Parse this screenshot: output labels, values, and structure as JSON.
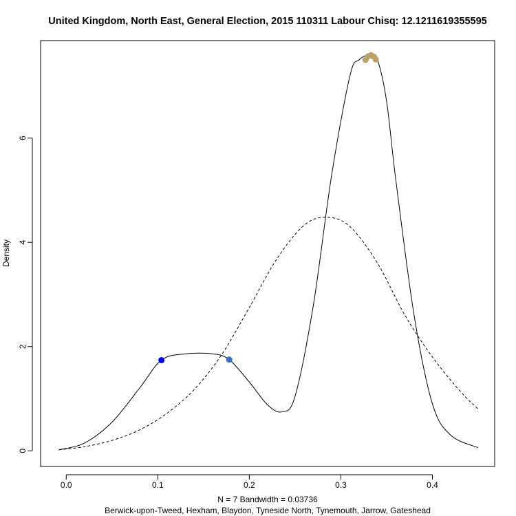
{
  "chart_data": {
    "type": "line",
    "title": "United Kingdom, North East, General Election, 2015 110311 Labour Chisq: 12.1211619355595",
    "xlabel": "N = 7   Bandwidth = 0.03736",
    "sublabel": "Berwick-upon-Tweed, Hexham, Blaydon, Tyneside North, Tynemouth, Jarrow, Gateshead",
    "ylabel": "Density",
    "xlim": [
      -0.028,
      0.468
    ],
    "ylim": [
      -0.3,
      7.87
    ],
    "x_ticks": [
      0.0,
      0.1,
      0.2,
      0.3,
      0.4
    ],
    "x_tick_labels": [
      "0.0",
      "0.1",
      "0.2",
      "0.3",
      "0.4"
    ],
    "y_ticks": [
      0,
      2,
      4,
      6
    ],
    "y_tick_labels": [
      "0",
      "2",
      "4",
      "6"
    ],
    "series": [
      {
        "style": "solid",
        "x": [
          -0.008,
          0.02,
          0.05,
          0.08,
          0.104,
          0.13,
          0.16,
          0.178,
          0.2,
          0.22,
          0.236,
          0.25,
          0.27,
          0.29,
          0.31,
          0.32,
          0.332,
          0.34,
          0.35,
          0.36,
          0.38,
          0.4,
          0.42,
          0.45
        ],
        "y": [
          0.02,
          0.15,
          0.55,
          1.2,
          1.74,
          1.86,
          1.86,
          1.75,
          1.32,
          0.88,
          0.75,
          1.05,
          2.8,
          5.3,
          7.2,
          7.5,
          7.6,
          7.5,
          6.7,
          5.2,
          2.6,
          0.9,
          0.3,
          0.06
        ]
      },
      {
        "style": "dashed",
        "x": [
          -0.008,
          0.02,
          0.05,
          0.08,
          0.11,
          0.14,
          0.17,
          0.2,
          0.23,
          0.26,
          0.285,
          0.31,
          0.34,
          0.37,
          0.4,
          0.43,
          0.45
        ],
        "y": [
          0.02,
          0.08,
          0.2,
          0.4,
          0.72,
          1.18,
          1.85,
          2.75,
          3.68,
          4.33,
          4.48,
          4.3,
          3.6,
          2.6,
          1.8,
          1.15,
          0.8
        ]
      }
    ],
    "points": [
      {
        "x": 0.104,
        "y": 1.74,
        "color": "#0000ff"
      },
      {
        "x": 0.178,
        "y": 1.75,
        "color": "#3a6fcc"
      },
      {
        "x": 0.327,
        "y": 7.5,
        "color": "#b8a264"
      },
      {
        "x": 0.33,
        "y": 7.57,
        "color": "#b8a264"
      },
      {
        "x": 0.333,
        "y": 7.59,
        "color": "#b8a264"
      },
      {
        "x": 0.336,
        "y": 7.56,
        "color": "#b8a264"
      },
      {
        "x": 0.338,
        "y": 7.51,
        "color": "#b8a264"
      }
    ]
  }
}
